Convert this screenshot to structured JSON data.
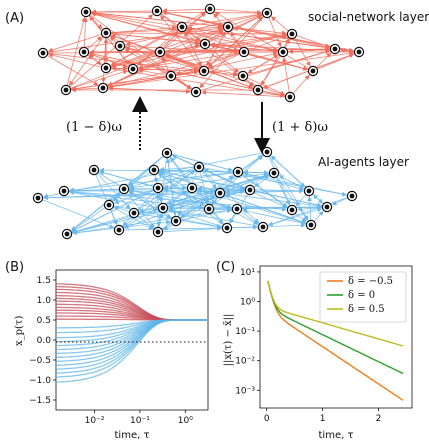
{
  "panel_a": {
    "label": "(A)",
    "top_layer_label": "social-network layer",
    "bottom_layer_label": "AI-agents layer",
    "down_arrow_label": "(1 + δ)ω",
    "up_arrow_label": "(1 − δ)ω",
    "colors": {
      "social_edges": "#f26b5b",
      "ai_edges": "#69b9ee",
      "nodes": "#111111"
    }
  },
  "panel_b": {
    "label": "(B)",
    "ylabel": "x_p(τ)",
    "xlabel": "time, τ",
    "yticks": [
      "1.5",
      "1.0",
      "0.5",
      "0.0",
      "−0.5",
      "−1.0",
      "−1.5"
    ],
    "xticks": [
      "10⁻²",
      "10⁻¹",
      "10⁰"
    ],
    "colors": {
      "high_start": "#c74b57",
      "low_start": "#5fb6e8",
      "reference_line": "#111111"
    }
  },
  "panel_c": {
    "label": "(C)",
    "ylabel": "||x(τ) − x̄||",
    "xlabel": "time, τ",
    "yticks": [
      "10¹",
      "10⁰",
      "10⁻¹",
      "10⁻²",
      "10⁻³"
    ],
    "xticks": [
      "0",
      "1",
      "2"
    ],
    "legend": [
      {
        "label": "δ = −0.5",
        "color": "#f07f1e"
      },
      {
        "label": "δ = 0",
        "color": "#2ca02c"
      },
      {
        "label": "δ = 0.5",
        "color": "#bcbd22"
      }
    ]
  }
}
